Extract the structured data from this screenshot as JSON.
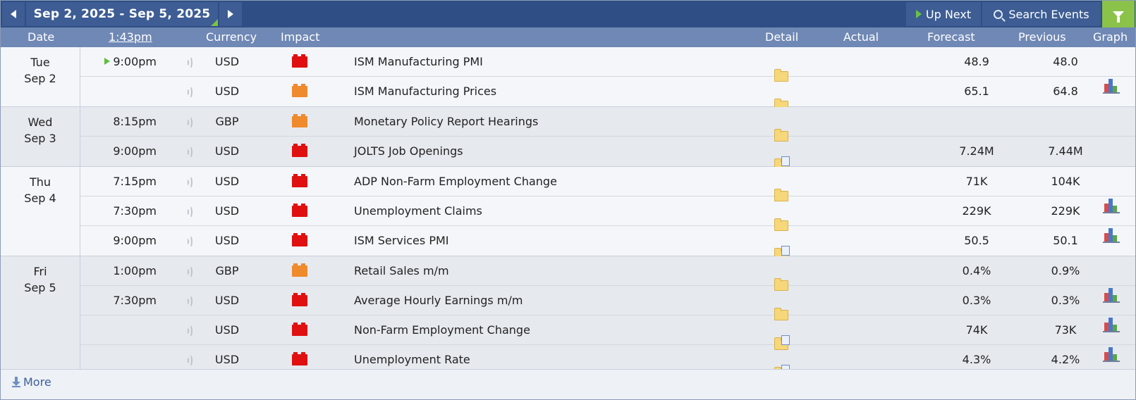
{
  "toolbar": {
    "date_range": "Sep 2, 2025 - Sep 5, 2025",
    "up_next": "Up Next",
    "search_events": "Search Events"
  },
  "columns": {
    "date": "Date",
    "time": "1:43pm",
    "currency": "Currency",
    "impact": "Impact",
    "detail": "Detail",
    "actual": "Actual",
    "forecast": "Forecast",
    "previous": "Previous",
    "graph": "Graph"
  },
  "colors": {
    "high_impact": "#e01010",
    "medium_impact": "#ef8a2d",
    "header": "#2f4e85",
    "filter": "#8bc24a"
  },
  "days": [
    {
      "weekday": "Tue",
      "date": "Sep 2",
      "events": [
        {
          "time": "9:00pm",
          "currency": "USD",
          "impact": "high",
          "event": "ISM Manufacturing PMI",
          "forecast": "48.9",
          "previous": "48.0",
          "graph": true
        },
        {
          "time": "",
          "currency": "USD",
          "impact": "medium",
          "event": "ISM Manufacturing Prices",
          "forecast": "65.1",
          "previous": "64.8",
          "graph": true
        }
      ]
    },
    {
      "weekday": "Wed",
      "date": "Sep 3",
      "events": [
        {
          "time": "8:15pm",
          "currency": "GBP",
          "impact": "medium",
          "event": "Monetary Policy Report Hearings",
          "forecast": "",
          "previous": "",
          "graph": false
        },
        {
          "time": "9:00pm",
          "currency": "USD",
          "impact": "high",
          "event": "JOLTS Job Openings",
          "forecast": "7.24M",
          "previous": "7.44M",
          "graph": true
        }
      ]
    },
    {
      "weekday": "Thu",
      "date": "Sep 4",
      "events": [
        {
          "time": "7:15pm",
          "currency": "USD",
          "impact": "high",
          "event": "ADP Non-Farm Employment Change",
          "forecast": "71K",
          "previous": "104K",
          "graph": true
        },
        {
          "time": "7:30pm",
          "currency": "USD",
          "impact": "high",
          "event": "Unemployment Claims",
          "forecast": "229K",
          "previous": "229K",
          "graph": true
        },
        {
          "time": "9:00pm",
          "currency": "USD",
          "impact": "high",
          "event": "ISM Services PMI",
          "forecast": "50.5",
          "previous": "50.1",
          "graph": true
        }
      ]
    },
    {
      "weekday": "Fri",
      "date": "Sep 5",
      "events": [
        {
          "time": "1:00pm",
          "currency": "GBP",
          "impact": "medium",
          "event": "Retail Sales m/m",
          "forecast": "0.4%",
          "previous": "0.9%",
          "graph": true
        },
        {
          "time": "7:30pm",
          "currency": "USD",
          "impact": "high",
          "event": "Average Hourly Earnings m/m",
          "forecast": "0.3%",
          "previous": "0.3%",
          "graph": true
        },
        {
          "time": "",
          "currency": "USD",
          "impact": "high",
          "event": "Non-Farm Employment Change",
          "forecast": "74K",
          "previous": "73K",
          "graph": true
        },
        {
          "time": "",
          "currency": "USD",
          "impact": "high",
          "event": "Unemployment Rate",
          "forecast": "4.3%",
          "previous": "4.2%",
          "graph": true
        }
      ]
    }
  ],
  "footer": {
    "more": "More"
  }
}
